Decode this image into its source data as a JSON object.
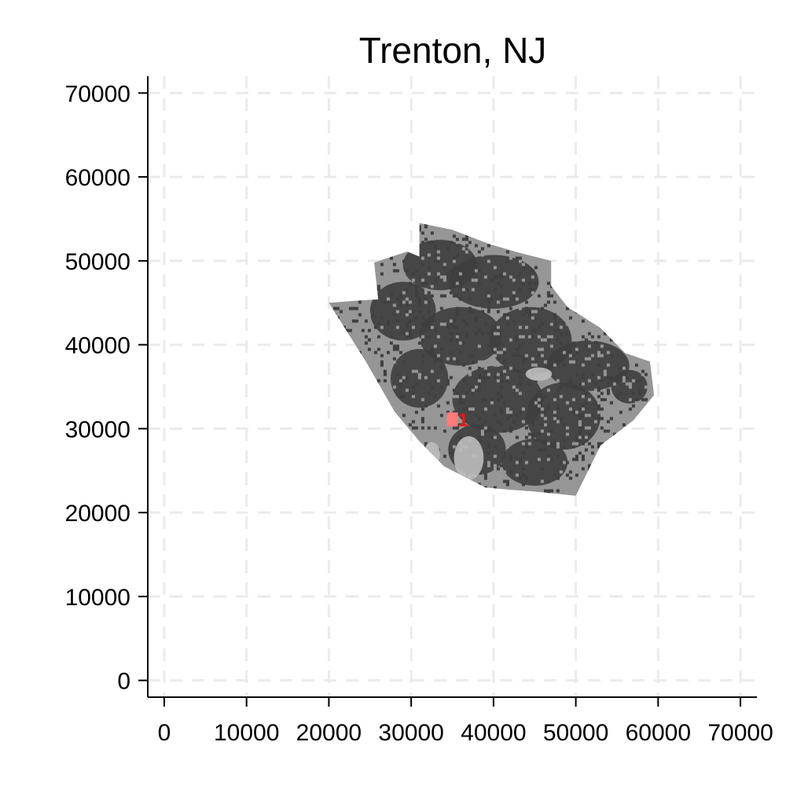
{
  "chart_data": {
    "type": "map",
    "title": "Trenton, NJ",
    "xlabel": "",
    "ylabel": "",
    "xlim": [
      -2000,
      72000
    ],
    "ylim": [
      -2000,
      72000
    ],
    "x_ticks": [
      0,
      10000,
      20000,
      30000,
      40000,
      50000,
      60000,
      70000
    ],
    "y_ticks": [
      0,
      10000,
      20000,
      30000,
      40000,
      50000,
      60000,
      70000
    ],
    "x_tick_labels": [
      "0",
      "10000",
      "20000",
      "30000",
      "40000",
      "50000",
      "60000",
      "70000"
    ],
    "y_tick_labels": [
      "0",
      "10000",
      "20000",
      "30000",
      "40000",
      "50000",
      "60000",
      "70000"
    ],
    "grid": true,
    "region_outline": [
      [
        20000,
        45000
      ],
      [
        24000,
        45300
      ],
      [
        26000,
        45400
      ],
      [
        25500,
        49800
      ],
      [
        29500,
        51100
      ],
      [
        31000,
        50500
      ],
      [
        31000,
        54500
      ],
      [
        35000,
        53700
      ],
      [
        39500,
        52000
      ],
      [
        43000,
        51000
      ],
      [
        47000,
        50000
      ],
      [
        47000,
        47000
      ],
      [
        49000,
        44500
      ],
      [
        53000,
        42000
      ],
      [
        56000,
        39000
      ],
      [
        59000,
        38000
      ],
      [
        59500,
        34000
      ],
      [
        57000,
        31000
      ],
      [
        53000,
        28000
      ],
      [
        50000,
        22000
      ],
      [
        45000,
        22500
      ],
      [
        41000,
        22800
      ],
      [
        39000,
        23000
      ],
      [
        34000,
        25500
      ],
      [
        31000,
        28500
      ],
      [
        28000,
        32000
      ],
      [
        24500,
        38000
      ],
      [
        20000,
        45000
      ]
    ],
    "colors": {
      "region_base": "#969696",
      "region_dense": "#3f3f3f",
      "region_light": "#bdbdbd",
      "highlight": "#ff7a7a",
      "highlight_label": "#e41a1c"
    },
    "highlight_cells": [
      {
        "label": "1",
        "x": 35000,
        "y": 31000
      }
    ],
    "dense_areas": [
      {
        "x": 33500,
        "y": 49500,
        "rx": 4500,
        "ry": 3000
      },
      {
        "x": 40000,
        "y": 47500,
        "rx": 5500,
        "ry": 3200
      },
      {
        "x": 29000,
        "y": 44000,
        "rx": 4000,
        "ry": 3500
      },
      {
        "x": 36000,
        "y": 41000,
        "rx": 5000,
        "ry": 3500
      },
      {
        "x": 44500,
        "y": 40500,
        "rx": 5000,
        "ry": 4000
      },
      {
        "x": 51500,
        "y": 37500,
        "rx": 5000,
        "ry": 3000
      },
      {
        "x": 31000,
        "y": 36000,
        "rx": 3500,
        "ry": 3500
      },
      {
        "x": 40500,
        "y": 33500,
        "rx": 5500,
        "ry": 4000
      },
      {
        "x": 48500,
        "y": 31500,
        "rx": 4500,
        "ry": 4000
      },
      {
        "x": 38000,
        "y": 27500,
        "rx": 3500,
        "ry": 3000
      },
      {
        "x": 45000,
        "y": 26000,
        "rx": 4000,
        "ry": 2800
      },
      {
        "x": 56500,
        "y": 35000,
        "rx": 2200,
        "ry": 2000
      }
    ],
    "light_areas": [
      {
        "x": 37000,
        "y": 26500,
        "rx": 1800,
        "ry": 2600
      },
      {
        "x": 45500,
        "y": 36500,
        "rx": 1600,
        "ry": 800
      },
      {
        "x": 32500,
        "y": 27000,
        "rx": 1000,
        "ry": 1400
      }
    ]
  }
}
